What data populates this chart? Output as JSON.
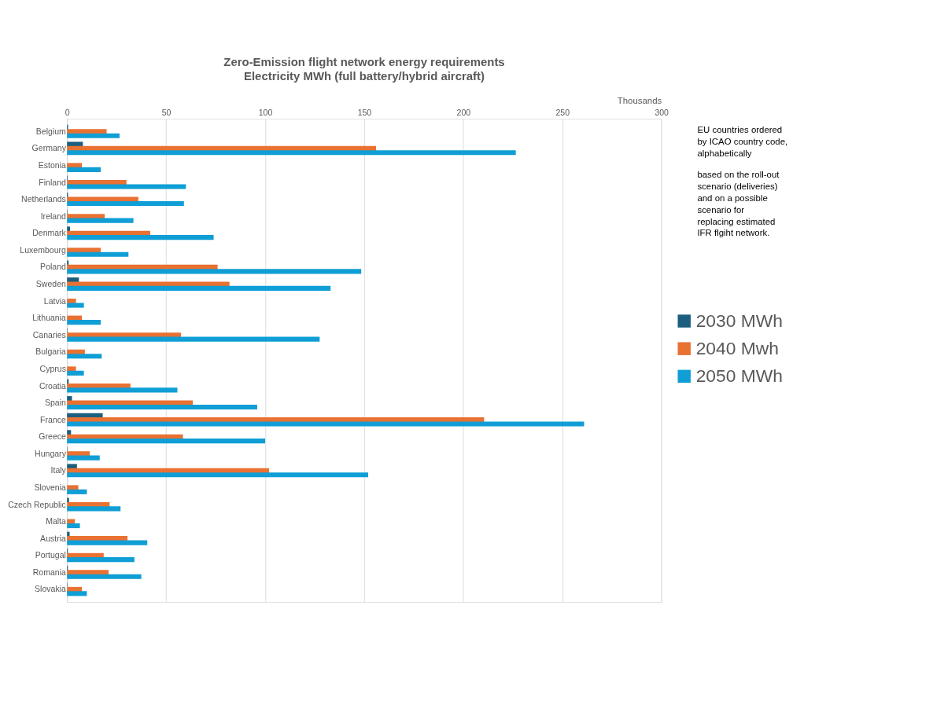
{
  "chart_data": {
    "type": "bar",
    "orientation": "horizontal",
    "title": "Zero-Emission flight network energy requirements",
    "subtitle": "Electricity MWh (full battery/hybrid aircraft)",
    "xlabel": "Thousands",
    "categories": [
      "Belgium",
      "Germany",
      "Estonia",
      "Finland",
      "Netherlands",
      "Ireland",
      "Denmark",
      "Luxembourg",
      "Poland",
      "Sweden",
      "Latvia",
      "Lithuania",
      "Canaries",
      "Bulgaria",
      "Cyprus",
      "Croatia",
      "Spain",
      "France",
      "Greece",
      "Hungary",
      "Italy",
      "Slovenia",
      "Czech Republic",
      "Malta",
      "Austria",
      "Portugal",
      "Romania",
      "Slovakia"
    ],
    "series": [
      {
        "name": "2030 MWh",
        "color": "#1b5e7e",
        "values": [
          0.5,
          8,
          0,
          0.3,
          0.5,
          0.2,
          1.5,
          0,
          0.8,
          6,
          0,
          0,
          0.2,
          0,
          0,
          0.8,
          2.5,
          18,
          2,
          0.2,
          5,
          0,
          1,
          0,
          1.3,
          0.4,
          0.4,
          0.2
        ]
      },
      {
        "name": "2040 Mwh",
        "color": "#e97132",
        "values": [
          20,
          156,
          7.5,
          30,
          36,
          19,
          42,
          17,
          76,
          82,
          4.5,
          7.5,
          57.5,
          9,
          4.5,
          32,
          63.5,
          210.5,
          58.5,
          11.5,
          102,
          5.7,
          21.5,
          4,
          30.5,
          18.5,
          21,
          7.5
        ]
      },
      {
        "name": "2050 MWh",
        "color": "#0f9ed5",
        "values": [
          26.5,
          226.5,
          17,
          60,
          59,
          33.5,
          74,
          31,
          148.5,
          133,
          8.5,
          17,
          127.5,
          17.5,
          8.5,
          55.7,
          96,
          261,
          100,
          16.5,
          152,
          10,
          27,
          6.5,
          40.5,
          34,
          37.5,
          10
        ]
      }
    ],
    "xlim": [
      0,
      300
    ],
    "xticks": [
      0,
      50,
      100,
      150,
      200,
      250,
      300
    ],
    "grid": "x",
    "legend": "right",
    "annotations": [
      "EU countries ordered by ICAO country code, alphabetically",
      "based on the roll-out scenario (deliveries) and on a possible scenario for replacing estimated IFR flgiht network."
    ]
  }
}
